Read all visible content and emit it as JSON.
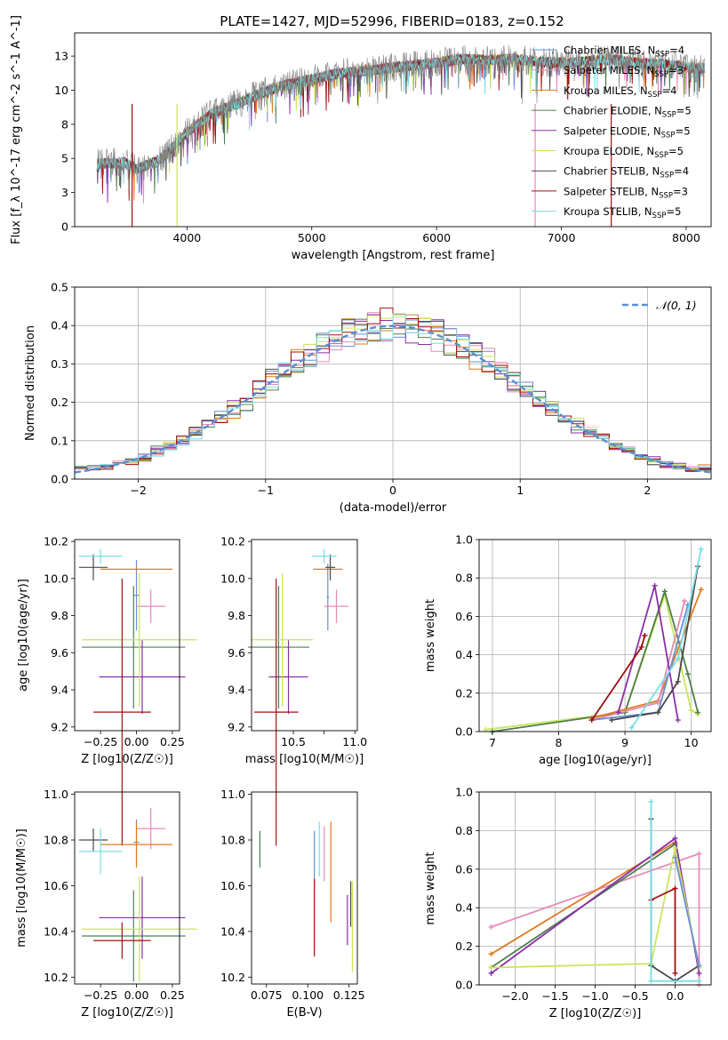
{
  "figure_title": "PLATE=1427, MJD=52996, FIBERID=0183, z=0.152",
  "colors": {
    "Chabrier MILES": "#6b8fd4",
    "Salpeter MILES": "#e88ab8",
    "Kroupa MILES": "#e07b20",
    "Chabrier ELODIE": "#4f7d4f",
    "Salpeter ELODIE": "#8b2fa8",
    "Kroupa ELODIE": "#c8e65a",
    "Chabrier STELIB": "#4a4a4a",
    "Salpeter STELIB": "#a01010",
    "Kroupa STELIB": "#7adde6"
  },
  "chart_data": [
    {
      "id": "spectrum",
      "type": "line",
      "title": "PLATE=1427, MJD=52996, FIBERID=0183, z=0.152",
      "xlabel": "wavelength [Angstrom, rest frame]",
      "ylabel": "Flux [f_λ 10^-17 erg cm^-2 s^-1 A^-1]",
      "xlim": [
        3100,
        8200
      ],
      "ylim": [
        0,
        14.2
      ],
      "xticks": [
        4000,
        5000,
        6000,
        7000,
        8000
      ],
      "yticks": [
        0.0,
        2.5,
        5.0,
        7.5,
        10.0,
        12.5
      ],
      "legend_position": "top-right",
      "data_color": "#808080",
      "series": [
        {
          "name": "Chabrier MILES, N_SSP=4",
          "nssp": "4"
        },
        {
          "name": "Salpeter MILES, N_SSP=3",
          "nssp": "3"
        },
        {
          "name": "Kroupa MILES, N_SSP=4",
          "nssp": "4"
        },
        {
          "name": "Chabrier ELODIE, N_SSP=5",
          "nssp": "5"
        },
        {
          "name": "Salpeter ELODIE, N_SSP=5",
          "nssp": "5"
        },
        {
          "name": "Kroupa ELODIE, N_SSP=5",
          "nssp": "5"
        },
        {
          "name": "Chabrier STELIB, N_SSP=4",
          "nssp": "4"
        },
        {
          "name": "Salpeter STELIB, N_SSP=3",
          "nssp": "3"
        },
        {
          "name": "Kroupa STELIB, N_SSP=5",
          "nssp": "5"
        }
      ],
      "continuum": {
        "x": [
          3280,
          3500,
          3600,
          3800,
          4000,
          4200,
          4400,
          4600,
          4800,
          5000,
          5200,
          5400,
          5600,
          5800,
          6000,
          6200,
          6400,
          6600,
          6800,
          7000,
          7200,
          7400,
          7600,
          7800,
          8000,
          8100
        ],
        "y": [
          4.6,
          4.7,
          4.2,
          5.0,
          6.9,
          8.3,
          9.0,
          9.8,
          10.4,
          10.8,
          11.2,
          11.4,
          11.6,
          11.8,
          12.0,
          12.3,
          12.2,
          12.3,
          12.1,
          12.0,
          12.1,
          12.3,
          12.0,
          11.9,
          11.7,
          11.6
        ]
      }
    },
    {
      "id": "residuals",
      "type": "histogram",
      "xlabel": "(data-model)/error",
      "ylabel": "Normed distribution",
      "xlim": [
        -2.5,
        2.5
      ],
      "ylim": [
        0,
        0.5
      ],
      "xticks": [
        -2,
        -1,
        0,
        1,
        2
      ],
      "yticks": [
        0.0,
        0.1,
        0.2,
        0.3,
        0.4,
        0.5
      ],
      "bin_width": 0.1,
      "bin_start": -2.5,
      "reference_curve": "N(0,1)",
      "legend_position": "top-right",
      "grid": true
    },
    {
      "id": "age_vs_Z",
      "type": "errorbar",
      "xlabel": "Z [log10(Z/Z☉)]",
      "ylabel": "age  [log10(age/yr)]",
      "xlim": [
        -0.43,
        0.3
      ],
      "ylim": [
        9.18,
        10.21
      ],
      "xticks": [
        -0.25,
        0.0,
        0.25
      ],
      "yticks": [
        9.2,
        9.4,
        9.6,
        9.8,
        10.0,
        10.2
      ],
      "points": [
        {
          "series": "Chabrier MILES",
          "x": 0.0,
          "xerr": 0.02,
          "y": 9.91,
          "yerr": 0.19
        },
        {
          "series": "Salpeter MILES",
          "x": 0.1,
          "xerr": 0.1,
          "y": 9.85,
          "yerr": 0.09
        },
        {
          "series": "Kroupa MILES",
          "x": 0.0,
          "xerr": 0.25,
          "y": 10.05,
          "yerr": 0.01
        },
        {
          "series": "Chabrier ELODIE",
          "x": -0.02,
          "xerr": 0.36,
          "y": 9.63,
          "yerr": 0.33
        },
        {
          "series": "Salpeter ELODIE",
          "x": 0.04,
          "xerr": 0.3,
          "y": 9.47,
          "yerr": 0.2
        },
        {
          "series": "Kroupa ELODIE",
          "x": 0.02,
          "xerr": 0.4,
          "y": 9.67,
          "yerr": 0.36
        },
        {
          "series": "Chabrier STELIB",
          "x": -0.3,
          "xerr": 0.1,
          "y": 10.06,
          "yerr": 0.07
        },
        {
          "series": "Salpeter STELIB",
          "x": -0.1,
          "xerr": 0.2,
          "y": 9.28,
          "yerr": 0.72
        },
        {
          "series": "Kroupa STELIB",
          "x": -0.25,
          "xerr": 0.15,
          "y": 10.12,
          "yerr": 0.04
        }
      ]
    },
    {
      "id": "age_vs_mass",
      "type": "errorbar",
      "xlabel": "mass [log10(M/M☉)]",
      "ylabel": "",
      "xlim": [
        10.16,
        11.02
      ],
      "ylim": [
        9.18,
        10.21
      ],
      "xticks": [
        10.5,
        10.75,
        11.0
      ],
      "tick_labels": [
        "10.5",
        "",
        "11.0"
      ],
      "yticks": [
        9.2,
        9.4,
        9.6,
        9.8,
        10.0,
        10.2
      ],
      "points": [
        {
          "series": "Chabrier MILES",
          "x": 10.78,
          "xerr": 0.01,
          "y": 9.9,
          "yerr": 0.18
        },
        {
          "series": "Salpeter MILES",
          "x": 10.85,
          "xerr": 0.1,
          "y": 9.85,
          "yerr": 0.09
        },
        {
          "series": "Kroupa MILES",
          "x": 10.78,
          "xerr": 0.12,
          "y": 10.05,
          "yerr": 0.01
        },
        {
          "series": "Chabrier ELODIE",
          "x": 10.38,
          "xerr": 0.25,
          "y": 9.63,
          "yerr": 0.33
        },
        {
          "series": "Salpeter ELODIE",
          "x": 10.46,
          "xerr": 0.16,
          "y": 9.47,
          "yerr": 0.2
        },
        {
          "series": "Kroupa ELODIE",
          "x": 10.41,
          "xerr": 0.25,
          "y": 9.67,
          "yerr": 0.36
        },
        {
          "series": "Chabrier STELIB",
          "x": 10.8,
          "xerr": 0.04,
          "y": 10.06,
          "yerr": 0.07
        },
        {
          "series": "Salpeter STELIB",
          "x": 10.36,
          "xerr": 0.18,
          "y": 9.28,
          "yerr": 0.72
        },
        {
          "series": "Kroupa STELIB",
          "x": 10.75,
          "xerr": 0.1,
          "y": 10.12,
          "yerr": 0.04
        }
      ]
    },
    {
      "id": "weight_vs_age",
      "type": "line",
      "xlabel": "age  [log10(age/yr)]",
      "ylabel": "mass weight",
      "xlim": [
        6.8,
        10.3
      ],
      "ylim": [
        0,
        1
      ],
      "xticks": [
        7,
        8,
        9,
        10
      ],
      "yticks": [
        0.0,
        0.2,
        0.4,
        0.6,
        0.8,
        1.0
      ],
      "grid": true,
      "series": [
        {
          "name": "Kroupa ELODIE",
          "x": [
            6.9,
            9.0,
            9.6,
            10.0,
            10.1
          ],
          "y": [
            0.01,
            0.1,
            0.71,
            0.11,
            0.09
          ]
        },
        {
          "name": "Chabrier ELODIE",
          "x": [
            7.0,
            9.0,
            9.6,
            9.95,
            10.1
          ],
          "y": [
            0.0,
            0.1,
            0.73,
            0.3,
            0.1
          ]
        },
        {
          "name": "Kroupa MILES",
          "x": [
            8.5,
            9.5,
            10.15
          ],
          "y": [
            0.07,
            0.16,
            0.74
          ]
        },
        {
          "name": "Salpeter MILES",
          "x": [
            8.5,
            9.5,
            9.9
          ],
          "y": [
            0.06,
            0.15,
            0.68
          ]
        },
        {
          "name": "Chabrier MILES",
          "x": [
            8.5,
            9.5,
            9.95
          ],
          "y": [
            0.06,
            0.1,
            0.66
          ]
        },
        {
          "name": "Salpeter ELODIE",
          "x": [
            8.9,
            9.45,
            9.8
          ],
          "y": [
            0.1,
            0.76,
            0.06
          ]
        },
        {
          "name": "Salpeter STELIB",
          "x": [
            8.5,
            9.25,
            9.3
          ],
          "y": [
            0.06,
            0.44,
            0.5
          ]
        },
        {
          "name": "Chabrier STELIB",
          "x": [
            8.8,
            9.5,
            9.8,
            10.1
          ],
          "y": [
            0.06,
            0.1,
            0.26,
            0.86
          ]
        },
        {
          "name": "Kroupa STELIB",
          "x": [
            9.1,
            9.8,
            10.15
          ],
          "y": [
            0.02,
            0.38,
            0.95
          ]
        }
      ]
    },
    {
      "id": "mass_vs_Z",
      "type": "errorbar",
      "xlabel": "Z [log10(Z/Z☉)]",
      "ylabel": "mass [log10(M/M☉)]",
      "xlim": [
        -0.43,
        0.3
      ],
      "ylim": [
        10.17,
        11.01
      ],
      "xticks": [
        -0.25,
        0.0,
        0.25
      ],
      "yticks": [
        10.2,
        10.4,
        10.6,
        10.8,
        11.0
      ],
      "points": [
        {
          "series": "Chabrier MILES",
          "x": 0.0,
          "xerr": 0.02,
          "y": 10.79,
          "yerr": 0.1
        },
        {
          "series": "Salpeter MILES",
          "x": 0.1,
          "xerr": 0.1,
          "y": 10.85,
          "yerr": 0.09
        },
        {
          "series": "Kroupa MILES",
          "x": 0.0,
          "xerr": 0.25,
          "y": 10.78,
          "yerr": 0.1
        },
        {
          "series": "Chabrier ELODIE",
          "x": -0.02,
          "xerr": 0.36,
          "y": 10.38,
          "yerr": 0.2
        },
        {
          "series": "Salpeter ELODIE",
          "x": 0.04,
          "xerr": 0.3,
          "y": 10.46,
          "yerr": 0.18
        },
        {
          "series": "Kroupa ELODIE",
          "x": 0.02,
          "xerr": 0.4,
          "y": 10.41,
          "yerr": 0.23
        },
        {
          "series": "Chabrier STELIB",
          "x": -0.3,
          "xerr": 0.1,
          "y": 10.8,
          "yerr": 0.05
        },
        {
          "series": "Salpeter STELIB",
          "x": -0.1,
          "xerr": 0.2,
          "y": 10.36,
          "yerr": 0.08
        },
        {
          "series": "Kroupa STELIB",
          "x": -0.25,
          "xerr": 0.15,
          "y": 10.75,
          "yerr": 0.1
        }
      ]
    },
    {
      "id": "mass_vs_ebv",
      "type": "errorbar",
      "xlabel": "E(B-V)",
      "ylabel": "",
      "xlim": [
        0.066,
        0.13
      ],
      "ylim": [
        10.17,
        11.01
      ],
      "xticks": [
        0.075,
        0.1,
        0.125
      ],
      "yticks": [
        10.2,
        10.4,
        10.6,
        10.8,
        11.0
      ],
      "points": [
        {
          "series": "Chabrier MILES",
          "x": 0.104,
          "xerr": 0,
          "y": 10.72,
          "yerr": 0.12
        },
        {
          "series": "Salpeter MILES",
          "x": 0.11,
          "xerr": 0,
          "y": 10.74,
          "yerr": 0.12
        },
        {
          "series": "Kroupa MILES",
          "x": 0.114,
          "xerr": 0,
          "y": 10.66,
          "yerr": 0.22
        },
        {
          "series": "Chabrier ELODIE",
          "x": 0.071,
          "xerr": 0,
          "y": 10.76,
          "yerr": 0.08
        },
        {
          "series": "Salpeter ELODIE",
          "x": 0.124,
          "xerr": 0,
          "y": 10.45,
          "yerr": 0.11
        },
        {
          "series": "Kroupa ELODIE",
          "x": 0.127,
          "xerr": 0,
          "y": 10.42,
          "yerr": 0.2
        },
        {
          "series": "Chabrier STELIB",
          "x": 0.126,
          "xerr": 0,
          "y": 10.52,
          "yerr": 0.1
        },
        {
          "series": "Salpeter STELIB",
          "x": 0.104,
          "xerr": 0,
          "y": 10.46,
          "yerr": 0.17
        },
        {
          "series": "Kroupa STELIB",
          "x": 0.107,
          "xerr": 0,
          "y": 10.76,
          "yerr": 0.12
        }
      ]
    },
    {
      "id": "weight_vs_Z",
      "type": "line",
      "xlabel": "Z [log10(Z/Z☉)]",
      "ylabel": "mass weight",
      "xlim": [
        -2.45,
        0.45
      ],
      "ylim": [
        0,
        1
      ],
      "xticks": [
        -2.0,
        -1.5,
        -1.0,
        -0.5,
        0.0
      ],
      "yticks": [
        0.0,
        0.2,
        0.4,
        0.6,
        0.8,
        1.0
      ],
      "grid": true,
      "series": [
        {
          "name": "Salpeter MILES",
          "x": [
            -2.3,
            0.3,
            0.3
          ],
          "y": [
            0.3,
            0.68,
            0.0
          ]
        },
        {
          "name": "Kroupa MILES",
          "x": [
            -2.3,
            0.0
          ],
          "y": [
            0.16,
            0.74
          ]
        },
        {
          "name": "Chabrier ELODIE",
          "x": [
            -2.3,
            0.0
          ],
          "y": [
            0.09,
            0.73
          ]
        },
        {
          "name": "Salpeter ELODIE",
          "x": [
            -2.3,
            0.0,
            0.3
          ],
          "y": [
            0.06,
            0.76,
            0.06
          ]
        },
        {
          "name": "Kroupa ELODIE",
          "x": [
            -2.3,
            -0.3,
            0.0,
            0.3
          ],
          "y": [
            0.09,
            0.11,
            0.71,
            0.09
          ]
        },
        {
          "name": "Salpeter STELIB",
          "x": [
            -0.3,
            0.0,
            0.0
          ],
          "y": [
            0.44,
            0.5,
            0.06
          ]
        },
        {
          "name": "Chabrier STELIB",
          "x": [
            -0.3,
            -0.3,
            0.0,
            0.3
          ],
          "y": [
            0.86,
            0.1,
            0.02,
            0.1
          ]
        },
        {
          "name": "Kroupa STELIB",
          "x": [
            -0.3,
            -0.3,
            0.3
          ],
          "y": [
            0.95,
            0.02,
            0.02
          ]
        },
        {
          "name": "Chabrier MILES",
          "x": [
            0.0,
            0.3
          ],
          "y": [
            0.66,
            0.1
          ]
        }
      ]
    }
  ]
}
